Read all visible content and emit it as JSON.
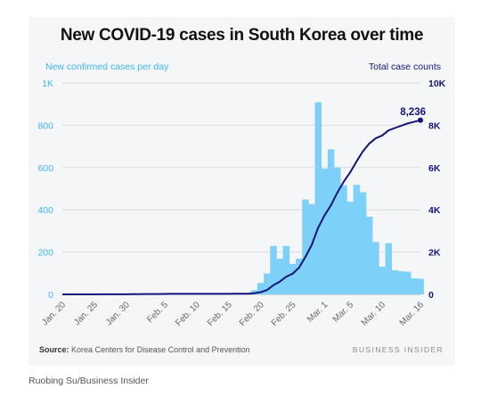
{
  "title": "New COVID-19 cases in South Korea over time",
  "source_label": "Source:",
  "source_text": "Korea Centers for Disease Control and Prevention",
  "brand": "BUSINESS INSIDER",
  "credit": "Ruobing Su/Business Insider",
  "chart_data": {
    "type": "bar+line",
    "title": "New COVID-19 cases in South Korea over time",
    "left_axis_label": "New confirmed cases per day",
    "right_axis_label": "Total case counts",
    "left_ylim": [
      0,
      1000
    ],
    "right_ylim": [
      0,
      10000
    ],
    "left_ticks": [
      {
        "value": 0,
        "label": "0"
      },
      {
        "value": 200,
        "label": "200"
      },
      {
        "value": 400,
        "label": "400"
      },
      {
        "value": 600,
        "label": "600"
      },
      {
        "value": 800,
        "label": "800"
      },
      {
        "value": 1000,
        "label": "1K"
      }
    ],
    "right_ticks": [
      {
        "value": 0,
        "label": "0"
      },
      {
        "value": 2000,
        "label": "2K"
      },
      {
        "value": 4000,
        "label": "4K"
      },
      {
        "value": 6000,
        "label": "6K"
      },
      {
        "value": 8000,
        "label": "8K"
      },
      {
        "value": 10000,
        "label": "10K"
      }
    ],
    "x_tick_labels": [
      "Jan. 20",
      "Jan. 25",
      "Jan. 30",
      "Feb. 5",
      "Feb. 10",
      "Feb. 15",
      "Feb. 20",
      "Feb. 25",
      "Mar. 1",
      "Mar. 5",
      "Mar. 10",
      "Mar. 16"
    ],
    "x_tick_days": [
      "2020-01-20",
      "2020-01-25",
      "2020-01-30",
      "2020-02-05",
      "2020-02-10",
      "2020-02-15",
      "2020-02-20",
      "2020-02-25",
      "2020-03-01",
      "2020-03-05",
      "2020-03-10",
      "2020-03-16"
    ],
    "grid": true,
    "series": [
      {
        "name": "New confirmed cases per day",
        "kind": "bar",
        "axis": "left",
        "color": "#7dd0f7",
        "dates": [
          "2020-01-20",
          "2020-01-21",
          "2020-01-22",
          "2020-01-23",
          "2020-01-24",
          "2020-01-25",
          "2020-01-26",
          "2020-01-27",
          "2020-01-28",
          "2020-01-29",
          "2020-01-30",
          "2020-01-31",
          "2020-02-01",
          "2020-02-02",
          "2020-02-03",
          "2020-02-04",
          "2020-02-05",
          "2020-02-06",
          "2020-02-07",
          "2020-02-08",
          "2020-02-09",
          "2020-02-10",
          "2020-02-11",
          "2020-02-12",
          "2020-02-13",
          "2020-02-14",
          "2020-02-15",
          "2020-02-16",
          "2020-02-17",
          "2020-02-18",
          "2020-02-19",
          "2020-02-20",
          "2020-02-21",
          "2020-02-22",
          "2020-02-23",
          "2020-02-24",
          "2020-02-25",
          "2020-02-26",
          "2020-02-27",
          "2020-02-28",
          "2020-02-29",
          "2020-03-01",
          "2020-03-02",
          "2020-03-03",
          "2020-03-04",
          "2020-03-05",
          "2020-03-06",
          "2020-03-07",
          "2020-03-08",
          "2020-03-09",
          "2020-03-10",
          "2020-03-11",
          "2020-03-12",
          "2020-03-13",
          "2020-03-14",
          "2020-03-15",
          "2020-03-16"
        ],
        "values": [
          1,
          0,
          0,
          0,
          1,
          0,
          1,
          1,
          0,
          0,
          2,
          5,
          1,
          3,
          0,
          1,
          3,
          5,
          1,
          0,
          2,
          0,
          1,
          0,
          0,
          0,
          0,
          1,
          1,
          1,
          20,
          54,
          99,
          229,
          169,
          229,
          144,
          169,
          449,
          427,
          909,
          595,
          686,
          600,
          516,
          438,
          518,
          483,
          367,
          248,
          131,
          242,
          114,
          110,
          107,
          76,
          74
        ]
      },
      {
        "name": "Total case counts",
        "kind": "line",
        "axis": "right",
        "color": "#14147a",
        "dates": [
          "2020-01-20",
          "2020-01-21",
          "2020-01-22",
          "2020-01-23",
          "2020-01-24",
          "2020-01-25",
          "2020-01-26",
          "2020-01-27",
          "2020-01-28",
          "2020-01-29",
          "2020-01-30",
          "2020-01-31",
          "2020-02-01",
          "2020-02-02",
          "2020-02-03",
          "2020-02-04",
          "2020-02-05",
          "2020-02-06",
          "2020-02-07",
          "2020-02-08",
          "2020-02-09",
          "2020-02-10",
          "2020-02-11",
          "2020-02-12",
          "2020-02-13",
          "2020-02-14",
          "2020-02-15",
          "2020-02-16",
          "2020-02-17",
          "2020-02-18",
          "2020-02-19",
          "2020-02-20",
          "2020-02-21",
          "2020-02-22",
          "2020-02-23",
          "2020-02-24",
          "2020-02-25",
          "2020-02-26",
          "2020-02-27",
          "2020-02-28",
          "2020-02-29",
          "2020-03-01",
          "2020-03-02",
          "2020-03-03",
          "2020-03-04",
          "2020-03-05",
          "2020-03-06",
          "2020-03-07",
          "2020-03-08",
          "2020-03-09",
          "2020-03-10",
          "2020-03-11",
          "2020-03-12",
          "2020-03-13",
          "2020-03-14",
          "2020-03-15",
          "2020-03-16"
        ],
        "values": [
          1,
          1,
          1,
          1,
          2,
          2,
          3,
          4,
          4,
          4,
          6,
          11,
          12,
          15,
          15,
          16,
          19,
          24,
          24,
          24,
          25,
          27,
          28,
          28,
          28,
          28,
          28,
          29,
          30,
          31,
          51,
          104,
          204,
          433,
          602,
          833,
          977,
          1261,
          1766,
          2337,
          3150,
          3736,
          4212,
          4812,
          5328,
          5766,
          6284,
          6767,
          7134,
          7382,
          7513,
          7755,
          7869,
          7979,
          8086,
          8162,
          8236
        ],
        "end_label": "8,236"
      }
    ]
  }
}
